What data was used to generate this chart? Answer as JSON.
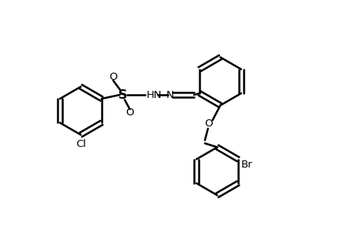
{
  "background_color": "#ffffff",
  "line_color": "#000000",
  "line_width": 1.8,
  "font_size": 9.5,
  "figsize": [
    4.6,
    3.0
  ],
  "dpi": 100,
  "xlim": [
    0,
    9.2
  ],
  "ylim": [
    0,
    6.0
  ]
}
